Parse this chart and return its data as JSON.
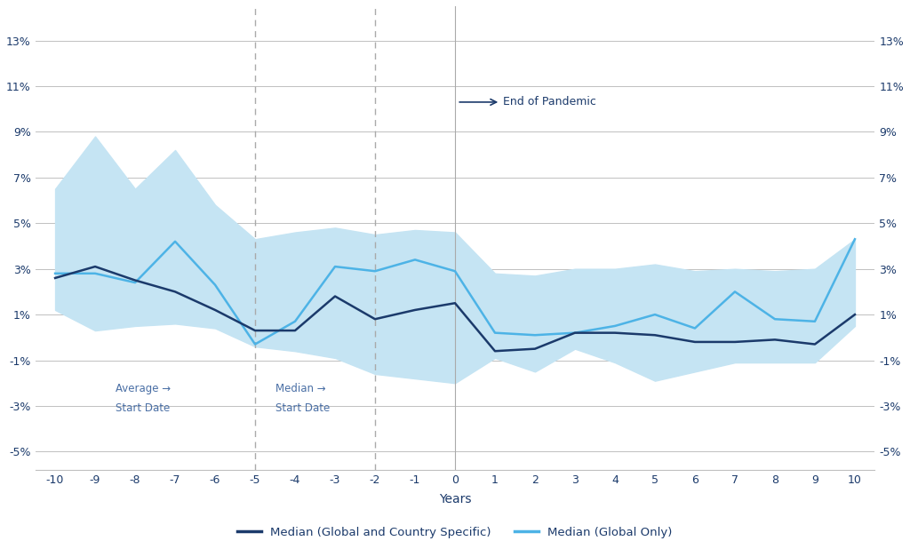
{
  "x": [
    -10,
    -9,
    -8,
    -7,
    -6,
    -5,
    -4,
    -3,
    -2,
    -1,
    0,
    1,
    2,
    3,
    4,
    5,
    6,
    7,
    8,
    9,
    10
  ],
  "median_global_country": [
    2.6,
    3.1,
    2.5,
    2.0,
    1.2,
    0.3,
    0.3,
    1.8,
    0.8,
    1.2,
    1.5,
    -0.6,
    -0.5,
    0.2,
    0.2,
    0.1,
    -0.2,
    -0.2,
    -0.1,
    -0.3,
    1.0
  ],
  "median_global_only": [
    2.8,
    2.8,
    2.4,
    4.2,
    2.3,
    -0.3,
    0.7,
    3.1,
    2.9,
    3.4,
    2.9,
    0.2,
    0.1,
    0.2,
    0.5,
    1.0,
    0.4,
    2.0,
    0.8,
    0.7,
    4.3
  ],
  "band_upper": [
    6.5,
    8.8,
    6.5,
    8.2,
    5.8,
    4.3,
    4.6,
    4.8,
    4.5,
    4.7,
    4.6,
    2.8,
    2.7,
    3.0,
    3.0,
    3.2,
    2.9,
    3.0,
    2.9,
    3.0,
    4.3
  ],
  "band_lower": [
    1.2,
    0.3,
    0.5,
    0.6,
    0.4,
    -0.4,
    -0.6,
    -0.9,
    -1.6,
    -1.8,
    -2.0,
    -0.9,
    -1.5,
    -0.5,
    -1.1,
    -1.9,
    -1.5,
    -1.1,
    -1.1,
    -1.1,
    0.5
  ],
  "color_dark": "#1b3a6b",
  "color_light": "#4db3e6",
  "color_band": "#c5e4f3",
  "vline_avg": -5,
  "vline_median": -2,
  "vline_pandemic_end": 0,
  "xlabel": "Years",
  "yticks": [
    -5,
    -3,
    -1,
    1,
    3,
    5,
    7,
    9,
    11,
    13
  ],
  "ylim": [
    -5.8,
    14.5
  ],
  "xlim": [
    -10.5,
    10.5
  ],
  "legend_dark": "Median (Global and Country Specific)",
  "legend_light": "Median (Global Only)",
  "annotation_avg": "Average →",
  "annotation_avg2": "Start Date",
  "annotation_med": "Median →",
  "annotation_med2": "Start Date",
  "annotation_pandemic": "End of Pandemic",
  "background_color": "#ffffff",
  "grid_color": "#c0c0c0"
}
